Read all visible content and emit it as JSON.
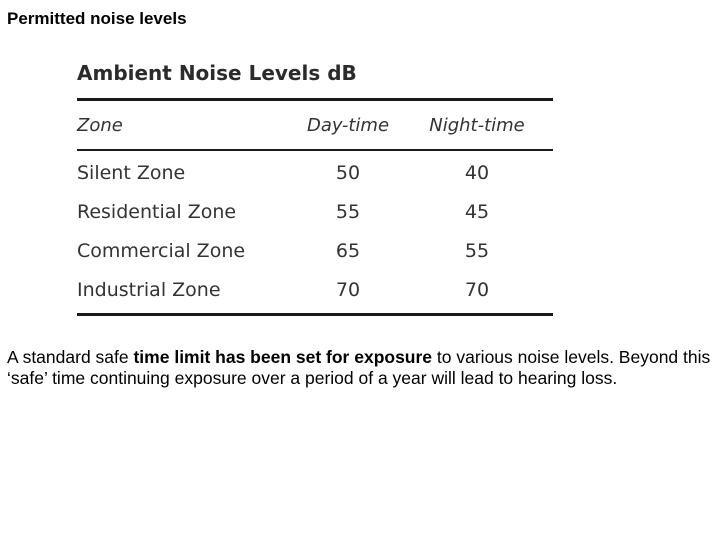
{
  "page": {
    "title": "Permitted noise levels"
  },
  "table": {
    "caption": "Ambient Noise Levels dB",
    "headers": {
      "zone": "Zone",
      "day": "Day-time",
      "night": "Night-time"
    },
    "rows": [
      {
        "zone": "Silent Zone",
        "day": "50",
        "night": "40"
      },
      {
        "zone": "Residential Zone",
        "day": "55",
        "night": "45"
      },
      {
        "zone": "Commercial Zone",
        "day": "65",
        "night": "55"
      },
      {
        "zone": "Industrial Zone",
        "day": "70",
        "night": "70"
      }
    ]
  },
  "paragraph": {
    "part1": "A standard safe ",
    "bold1": "time limit has been set for exposure",
    "part2": " to various noise levels. Beyond this ‘safe’ time continuing exposure over a period of a year will lead to hearing loss."
  }
}
